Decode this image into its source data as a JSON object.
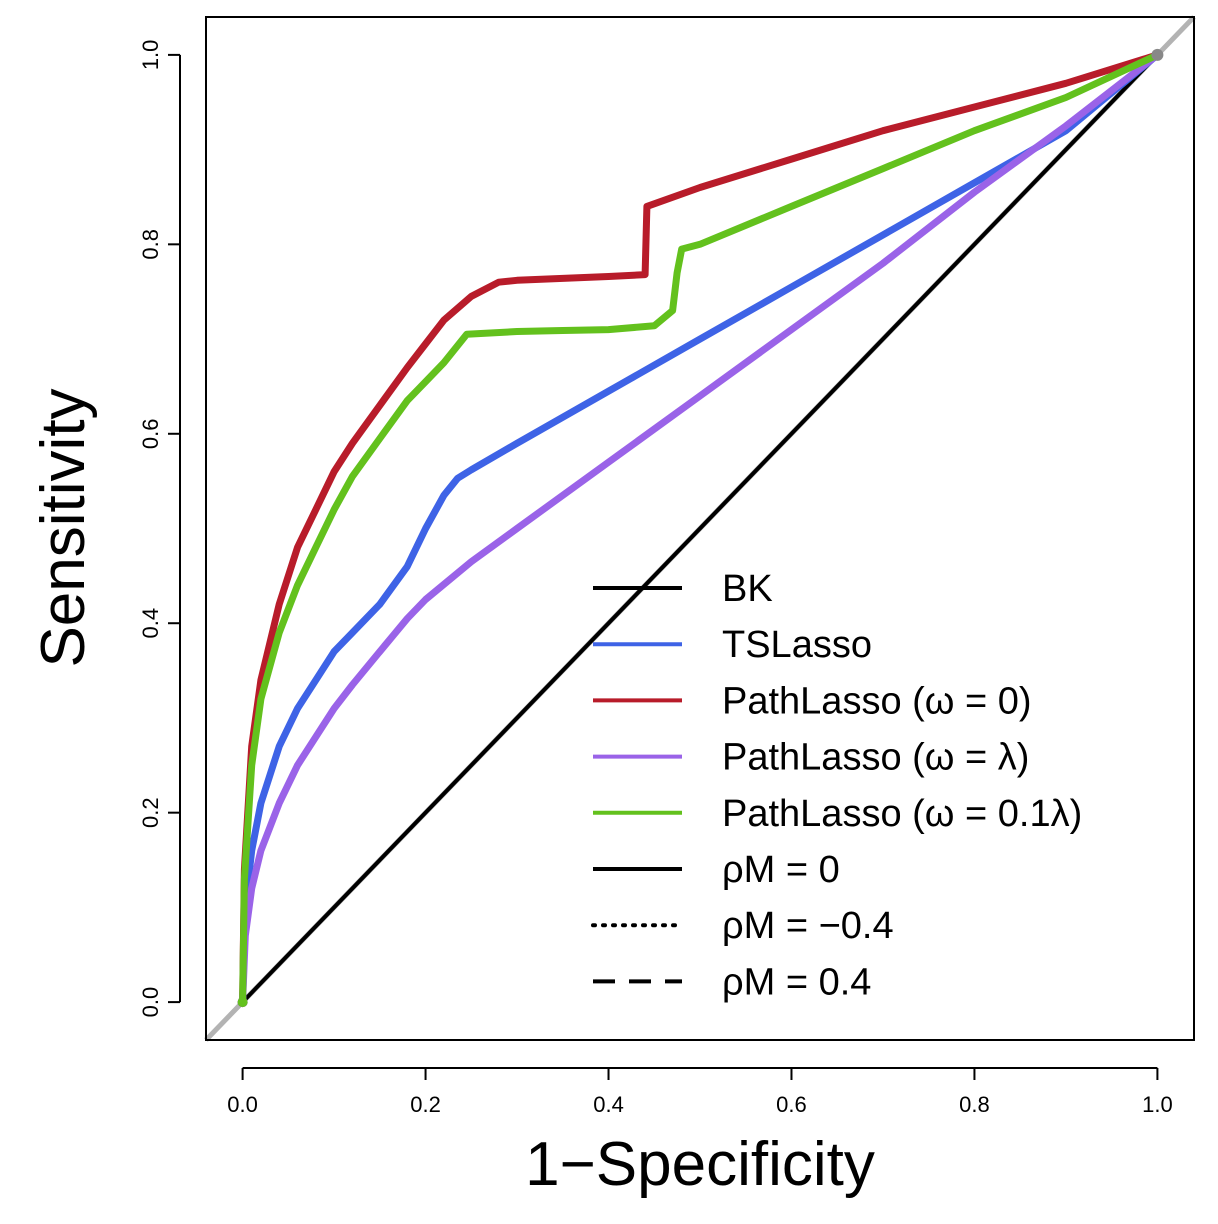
{
  "chart_data": {
    "type": "line",
    "xlabel": "1−Specificity",
    "ylabel": "Sensitivity",
    "xlim": [
      -0.04,
      1.04
    ],
    "ylim": [
      -0.04,
      1.04
    ],
    "x_ticks": [
      "0.0",
      "0.2",
      "0.4",
      "0.6",
      "0.8",
      "1.0"
    ],
    "y_ticks": [
      "0.0",
      "0.2",
      "0.4",
      "0.6",
      "0.8",
      "1.0"
    ],
    "grid": false,
    "legend_position": "bottom-right",
    "reference_line": {
      "from": [
        -0.04,
        -0.04
      ],
      "to": [
        1.04,
        1.04
      ],
      "color": "#b3b3b3"
    },
    "legend": [
      {
        "label": "BK",
        "color": "#000000",
        "style": "solid"
      },
      {
        "label": "TSLasso",
        "color": "#3e63e6",
        "style": "solid"
      },
      {
        "label": "PathLasso (ω = 0)",
        "color": "#b81c2a",
        "style": "solid"
      },
      {
        "label": "PathLasso (ω = λ)",
        "color": "#9a63e8",
        "style": "solid"
      },
      {
        "label": "PathLasso (ω = 0.1λ)",
        "color": "#63c11d",
        "style": "solid"
      },
      {
        "label": "ρM = 0",
        "color": "#000000",
        "style": "solid"
      },
      {
        "label": "ρM = −0.4",
        "color": "#000000",
        "style": "dotted"
      },
      {
        "label": "ρM = 0.4",
        "color": "#000000",
        "style": "dashed"
      }
    ],
    "series": [
      {
        "name": "BK",
        "color": "#000000",
        "width": 4,
        "x": [
          0,
          1
        ],
        "y": [
          0,
          1
        ]
      },
      {
        "name": "TSLasso",
        "color": "#3e63e6",
        "width": 7,
        "x": [
          0,
          0.003,
          0.01,
          0.02,
          0.04,
          0.06,
          0.08,
          0.1,
          0.12,
          0.15,
          0.18,
          0.2,
          0.22,
          0.235,
          0.25,
          0.3,
          0.4,
          0.5,
          0.6,
          0.7,
          0.8,
          0.9,
          1.0
        ],
        "y": [
          0,
          0.1,
          0.16,
          0.21,
          0.27,
          0.31,
          0.34,
          0.37,
          0.39,
          0.42,
          0.46,
          0.5,
          0.535,
          0.553,
          0.562,
          0.59,
          0.645,
          0.7,
          0.755,
          0.81,
          0.865,
          0.92,
          1.0
        ]
      },
      {
        "name": "PathLasso (ω = 0)",
        "color": "#b81c2a",
        "width": 7,
        "x": [
          0,
          0.002,
          0.01,
          0.02,
          0.04,
          0.06,
          0.08,
          0.1,
          0.12,
          0.15,
          0.18,
          0.2,
          0.22,
          0.25,
          0.28,
          0.3,
          0.35,
          0.4,
          0.44,
          0.442,
          0.5,
          0.6,
          0.7,
          0.8,
          0.9,
          1.0
        ],
        "y": [
          0,
          0.14,
          0.27,
          0.34,
          0.42,
          0.48,
          0.52,
          0.56,
          0.59,
          0.63,
          0.67,
          0.695,
          0.72,
          0.745,
          0.76,
          0.762,
          0.764,
          0.766,
          0.768,
          0.84,
          0.86,
          0.89,
          0.92,
          0.945,
          0.97,
          1.0
        ]
      },
      {
        "name": "PathLasso (ω = λ)",
        "color": "#9a63e8",
        "width": 7,
        "x": [
          0,
          0.003,
          0.01,
          0.02,
          0.04,
          0.06,
          0.08,
          0.1,
          0.12,
          0.15,
          0.18,
          0.2,
          0.25,
          0.3,
          0.4,
          0.5,
          0.6,
          0.7,
          0.8,
          0.9,
          1.0
        ],
        "y": [
          0,
          0.07,
          0.12,
          0.16,
          0.21,
          0.25,
          0.28,
          0.31,
          0.335,
          0.37,
          0.405,
          0.425,
          0.465,
          0.5,
          0.57,
          0.64,
          0.71,
          0.78,
          0.855,
          0.925,
          1.0
        ]
      },
      {
        "name": "PathLasso (ω = 0.1λ)",
        "color": "#63c11d",
        "width": 7,
        "x": [
          0,
          0.002,
          0.01,
          0.02,
          0.04,
          0.06,
          0.08,
          0.1,
          0.12,
          0.15,
          0.18,
          0.2,
          0.22,
          0.245,
          0.3,
          0.35,
          0.4,
          0.45,
          0.47,
          0.475,
          0.48,
          0.5,
          0.6,
          0.7,
          0.8,
          0.9,
          1.0
        ],
        "y": [
          0,
          0.13,
          0.25,
          0.32,
          0.39,
          0.44,
          0.48,
          0.52,
          0.555,
          0.595,
          0.635,
          0.655,
          0.675,
          0.705,
          0.708,
          0.709,
          0.71,
          0.714,
          0.73,
          0.77,
          0.795,
          0.8,
          0.84,
          0.88,
          0.92,
          0.955,
          1.0
        ]
      }
    ]
  }
}
